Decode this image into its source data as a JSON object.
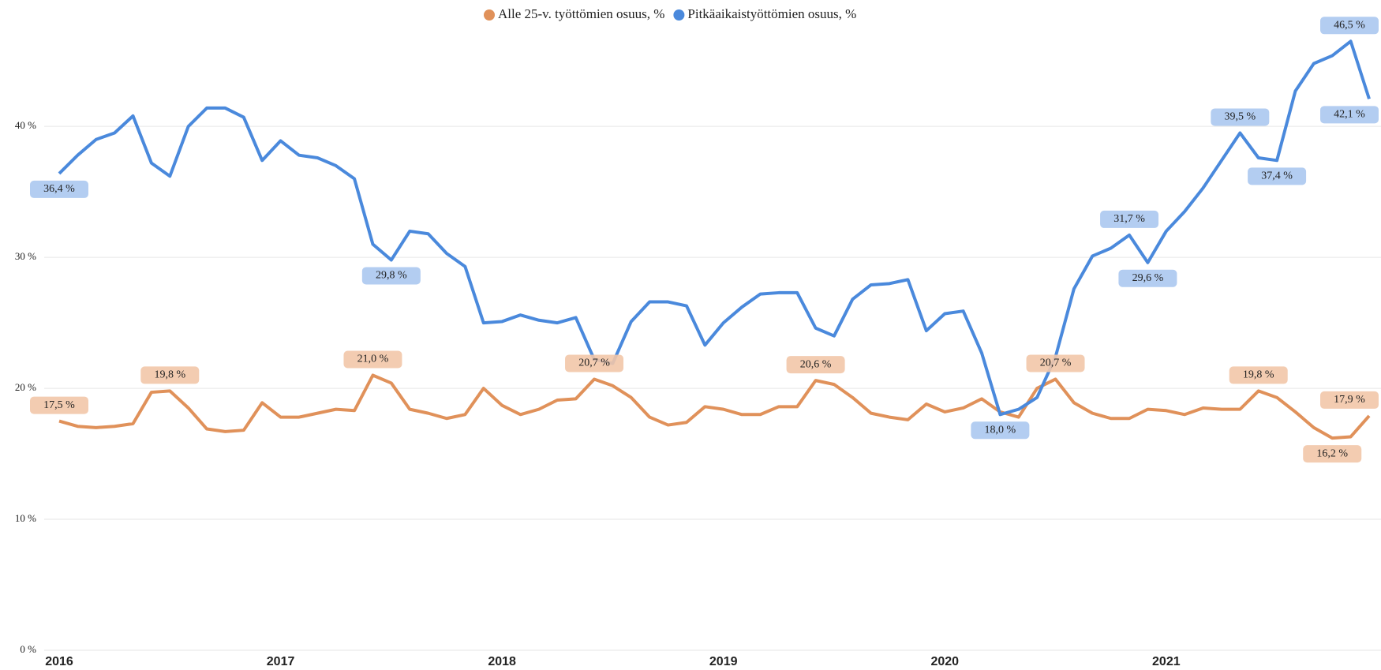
{
  "chart_data": {
    "type": "line",
    "categories": [
      "2016",
      null,
      null,
      null,
      null,
      null,
      null,
      null,
      null,
      null,
      null,
      null,
      "2017",
      null,
      null,
      null,
      null,
      null,
      null,
      null,
      null,
      null,
      null,
      null,
      "2018",
      null,
      null,
      null,
      null,
      null,
      null,
      null,
      null,
      null,
      null,
      null,
      "2019",
      null,
      null,
      null,
      null,
      null,
      null,
      null,
      null,
      null,
      null,
      null,
      "2020",
      null,
      null,
      null,
      null,
      null,
      null,
      null,
      null,
      null,
      null,
      null,
      "2021",
      null,
      null,
      null,
      null,
      null,
      null,
      null,
      null,
      null,
      null,
      null
    ],
    "series": [
      {
        "name": "Alle 25-v. työttömien osuus, %",
        "color": "#e0915a",
        "label_color": "#f2c6a8",
        "values": [
          17.5,
          17.1,
          17.0,
          17.1,
          17.3,
          19.7,
          19.8,
          18.5,
          16.9,
          16.7,
          16.8,
          18.9,
          17.8,
          17.8,
          18.1,
          18.4,
          18.3,
          21.0,
          20.4,
          18.4,
          18.1,
          17.7,
          18.0,
          20.0,
          18.7,
          18.0,
          18.4,
          19.1,
          19.2,
          20.7,
          20.2,
          19.3,
          17.8,
          17.2,
          17.4,
          18.6,
          18.4,
          18.0,
          18.0,
          18.6,
          18.6,
          20.6,
          20.3,
          19.3,
          18.1,
          17.8,
          17.6,
          18.8,
          18.2,
          18.5,
          19.2,
          18.2,
          17.8,
          20.0,
          20.7,
          18.9,
          18.1,
          17.7,
          17.7,
          18.4,
          18.3,
          18.0,
          18.5,
          18.4,
          18.4,
          19.8,
          19.3,
          18.2,
          17.0,
          16.2,
          16.3,
          17.9
        ],
        "value_labels": [
          "17,5 %",
          null,
          null,
          null,
          null,
          null,
          "19,8 %",
          null,
          null,
          null,
          null,
          null,
          null,
          null,
          null,
          null,
          null,
          "21,0 %",
          null,
          null,
          null,
          null,
          null,
          null,
          null,
          null,
          null,
          null,
          null,
          "20,7 %",
          null,
          null,
          null,
          null,
          null,
          null,
          null,
          null,
          null,
          null,
          null,
          "20,6 %",
          null,
          null,
          null,
          null,
          null,
          null,
          null,
          null,
          null,
          null,
          null,
          null,
          "20,7 %",
          null,
          null,
          null,
          null,
          null,
          null,
          null,
          null,
          null,
          null,
          "19,8 %",
          null,
          null,
          null,
          "16,2 %",
          null,
          "17,9 %"
        ]
      },
      {
        "name": "Pitkäaikaistyöttömien osuus, %",
        "color": "#4a89dc",
        "label_color": "#abc8f0",
        "values": [
          36.4,
          37.8,
          39.0,
          39.5,
          40.8,
          37.2,
          36.2,
          40.0,
          41.4,
          41.4,
          40.7,
          37.4,
          38.9,
          37.8,
          37.6,
          37.0,
          36.0,
          31.0,
          29.8,
          32.0,
          31.8,
          30.3,
          29.3,
          25.0,
          25.1,
          25.6,
          25.2,
          25.0,
          25.4,
          22.2,
          21.9,
          25.1,
          26.6,
          26.6,
          26.3,
          23.3,
          25.0,
          26.2,
          27.2,
          27.3,
          27.3,
          24.6,
          24.0,
          26.8,
          27.9,
          28.0,
          28.3,
          24.4,
          25.7,
          25.9,
          22.7,
          18.0,
          18.4,
          19.3,
          22.4,
          27.6,
          30.1,
          30.7,
          31.7,
          29.6,
          32.0,
          33.5,
          35.3,
          37.4,
          39.5,
          37.6,
          37.4,
          42.7,
          44.8,
          45.4,
          46.5,
          42.1
        ],
        "value_labels": [
          "36,4 %",
          null,
          null,
          null,
          null,
          null,
          null,
          null,
          null,
          null,
          null,
          null,
          null,
          null,
          null,
          null,
          null,
          null,
          "29,8 %",
          null,
          null,
          null,
          null,
          null,
          null,
          null,
          null,
          null,
          null,
          null,
          null,
          null,
          null,
          null,
          null,
          null,
          null,
          null,
          null,
          null,
          null,
          null,
          null,
          null,
          null,
          null,
          null,
          null,
          null,
          null,
          null,
          "18,0 %",
          null,
          null,
          null,
          null,
          null,
          null,
          "31,7 %",
          "29,6 %",
          null,
          null,
          null,
          null,
          "39,5 %",
          null,
          "37,4 %",
          null,
          null,
          null,
          "46,5 %",
          "42,1 %"
        ]
      }
    ],
    "ylim": [
      0,
      47
    ],
    "yticks": [
      {
        "value": 0,
        "label": "0 %"
      },
      {
        "value": 10,
        "label": "10 %"
      },
      {
        "value": 20,
        "label": "20 %"
      },
      {
        "value": 30,
        "label": "30 %"
      },
      {
        "value": 40,
        "label": "40 %"
      }
    ],
    "grid": true,
    "legend": "top"
  }
}
